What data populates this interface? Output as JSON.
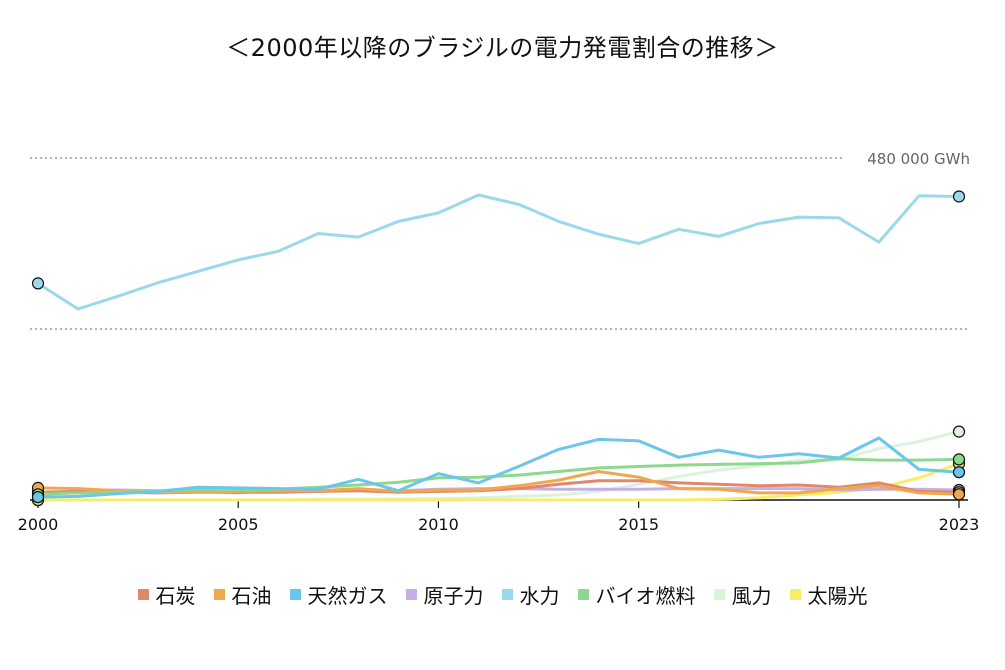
{
  "title": "＜2000年以降のブラジルの電力発電割合の推移＞",
  "chart_data": {
    "type": "line",
    "x": [
      2000,
      2001,
      2002,
      2003,
      2004,
      2005,
      2006,
      2007,
      2008,
      2009,
      2010,
      2011,
      2012,
      2013,
      2014,
      2015,
      2016,
      2017,
      2018,
      2019,
      2020,
      2021,
      2022,
      2023
    ],
    "xticks": [
      "2000",
      "2005",
      "2010",
      "2015",
      "2023"
    ],
    "xtick_values": [
      2000,
      2005,
      2010,
      2015,
      2023
    ],
    "ylim": [
      0,
      480000
    ],
    "reference_lines": [
      {
        "value": 480000,
        "label": "480 000 GWh"
      },
      {
        "value": 240000,
        "label": ""
      }
    ],
    "grid": false,
    "legend_position": "bottom",
    "series": [
      {
        "name": "石炭",
        "color": "#e0896a",
        "values": [
          11000,
          12000,
          11000,
          10000,
          11000,
          11000,
          11000,
          12000,
          13000,
          11000,
          12000,
          13000,
          16000,
          22000,
          27000,
          27000,
          24000,
          22000,
          20000,
          21000,
          18000,
          24000,
          12000,
          11000
        ]
      },
      {
        "name": "石油",
        "color": "#f0a850",
        "values": [
          17000,
          16000,
          13000,
          11000,
          11000,
          12000,
          13000,
          13000,
          16000,
          12000,
          14000,
          14000,
          20000,
          28000,
          40000,
          32000,
          16000,
          15000,
          10000,
          10000,
          16000,
          20000,
          10000,
          8000
        ]
      },
      {
        "name": "天然ガス",
        "color": "#6cc6ea",
        "values": [
          4000,
          5000,
          9000,
          12000,
          18000,
          17000,
          16000,
          15000,
          29000,
          13000,
          37000,
          24000,
          47000,
          71000,
          85000,
          83000,
          60000,
          70000,
          60000,
          65000,
          59000,
          87000,
          43000,
          39000
        ]
      },
      {
        "name": "原子力",
        "color": "#c4b0e6",
        "values": [
          6000,
          14000,
          14000,
          13000,
          12000,
          10000,
          14000,
          12000,
          14000,
          13000,
          15000,
          16000,
          16000,
          15000,
          15000,
          15000,
          16000,
          16000,
          16000,
          16000,
          14000,
          15000,
          15000,
          14000
        ]
      },
      {
        "name": "水力",
        "color": "#9cd8ec",
        "values": [
          304000,
          268000,
          286000,
          305000,
          321000,
          337000,
          349000,
          374000,
          369000,
          391000,
          403000,
          428000,
          415000,
          391000,
          373000,
          360000,
          380000,
          370000,
          388000,
          397000,
          396000,
          362000,
          427000,
          426000
        ]
      },
      {
        "name": "バイオ燃料",
        "color": "#8ed88e",
        "values": [
          8000,
          10000,
          11000,
          12000,
          14000,
          14000,
          15000,
          18000,
          21000,
          25000,
          31000,
          32000,
          35000,
          40000,
          45000,
          47000,
          49000,
          50000,
          51000,
          52000,
          58000,
          56000,
          56000,
          57000
        ]
      },
      {
        "name": "風力",
        "color": "#dcf2dc",
        "values": [
          0,
          0,
          0,
          0,
          0,
          0,
          0,
          1000,
          1000,
          1000,
          2000,
          3000,
          5000,
          7000,
          12000,
          22000,
          33000,
          42000,
          48000,
          56000,
          57000,
          72000,
          82000,
          96000
        ]
      },
      {
        "name": "太陽光",
        "color": "#f8ec6a",
        "values": [
          0,
          0,
          0,
          0,
          0,
          0,
          0,
          0,
          0,
          0,
          0,
          0,
          0,
          0,
          0,
          0,
          0,
          1000,
          3000,
          7000,
          11000,
          17000,
          31000,
          51000
        ]
      }
    ]
  },
  "legend": [
    {
      "label": "石炭",
      "color": "#e0896a"
    },
    {
      "label": "石油",
      "color": "#f0a850"
    },
    {
      "label": "天然ガス",
      "color": "#6cc6ea"
    },
    {
      "label": "原子力",
      "color": "#c4b0e6"
    },
    {
      "label": "水力",
      "color": "#9cd8ec"
    },
    {
      "label": "バイオ燃料",
      "color": "#8ed88e"
    },
    {
      "label": "風力",
      "color": "#dcf2dc"
    },
    {
      "label": "太陽光",
      "color": "#f8ec6a"
    }
  ]
}
